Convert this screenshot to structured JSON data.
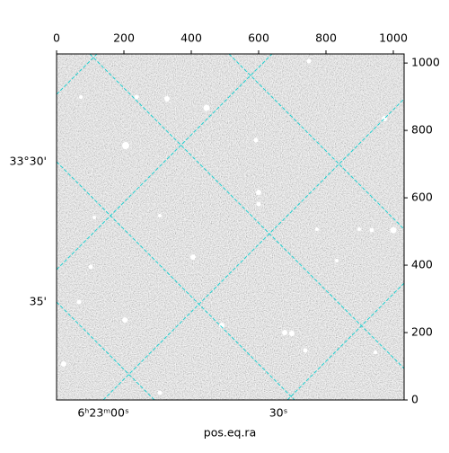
{
  "chart_data": {
    "type": "image",
    "x_label": "pos.eq.ra",
    "xlim": [
      0,
      1032
    ],
    "ylim": [
      0,
      1027
    ],
    "xticks": [
      0,
      200,
      400,
      600,
      800,
      1000
    ],
    "yticks": [
      0,
      200,
      400,
      600,
      800,
      1000
    ],
    "ra_ticks": [
      "6ʰ23ᵐ00ˢ",
      "30ˢ"
    ],
    "dec_ticks": [
      "33°30'",
      "35'"
    ],
    "grid_color": "#20d0d0"
  }
}
